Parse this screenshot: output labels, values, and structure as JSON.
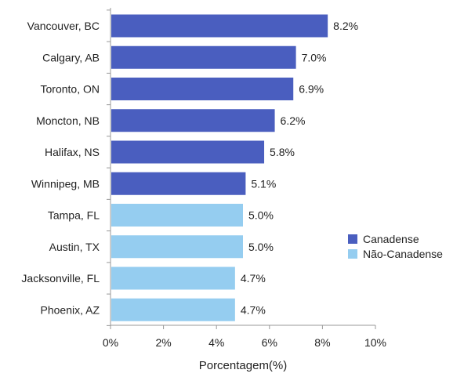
{
  "chart_data": {
    "type": "bar",
    "orientation": "horizontal",
    "categories": [
      "Vancouver, BC",
      "Calgary, AB",
      "Toronto, ON",
      "Moncton, NB",
      "Halifax, NS",
      "Winnipeg, MB",
      "Tampa, FL",
      "Austin, TX",
      "Jacksonville, FL",
      "Phoenix, AZ"
    ],
    "values": [
      8.2,
      7.0,
      6.9,
      6.2,
      5.8,
      5.1,
      5.0,
      5.0,
      4.7,
      4.7
    ],
    "value_labels": [
      "8.2%",
      "7.0%",
      "6.9%",
      "6.2%",
      "5.8%",
      "5.1%",
      "5.0%",
      "5.0%",
      "4.7%",
      "4.7%"
    ],
    "groups": [
      "Canadense",
      "Canadense",
      "Canadense",
      "Canadense",
      "Canadense",
      "Canadense",
      "Não-Canadense",
      "Não-Canadense",
      "Não-Canadense",
      "Não-Canadense"
    ],
    "legend": [
      {
        "name": "Canadense",
        "color": "#4a5ebf"
      },
      {
        "name": "Não-Canadense",
        "color": "#95cdf0"
      }
    ],
    "legend_position": "right",
    "xlabel": "Porcentagem(%)",
    "ylabel": "",
    "title": "",
    "xlim": [
      0,
      10
    ],
    "x_ticks": [
      0,
      2,
      4,
      6,
      8,
      10
    ],
    "x_tick_labels": [
      "0%",
      "2%",
      "4%",
      "6%",
      "8%",
      "10%"
    ],
    "grid": false
  }
}
